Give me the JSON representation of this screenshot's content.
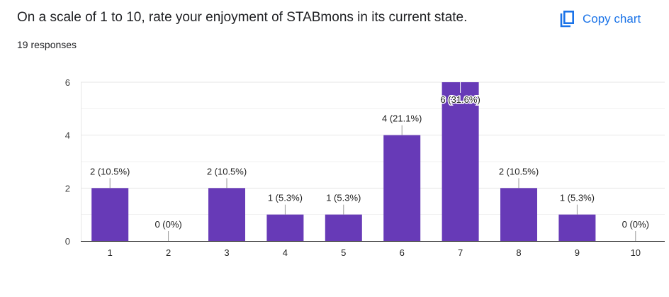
{
  "header": {
    "question": "On a scale of 1 to 10, rate your enjoyment of STABmons in its current state.",
    "responses": "19 responses",
    "copy_label": "Copy chart"
  },
  "colors": {
    "bar": "#673ab7",
    "accent": "#1a73e8"
  },
  "chart_data": {
    "type": "bar",
    "categories": [
      "1",
      "2",
      "3",
      "4",
      "5",
      "6",
      "7",
      "8",
      "9",
      "10"
    ],
    "values": [
      2,
      0,
      2,
      1,
      1,
      4,
      6,
      2,
      1,
      0
    ],
    "data_labels": [
      "2 (10.5%)",
      "0 (0%)",
      "2 (10.5%)",
      "1 (5.3%)",
      "1 (5.3%)",
      "4 (21.1%)",
      "6 (31.6%)",
      "2 (10.5%)",
      "1 (5.3%)",
      "0 (0%)"
    ],
    "yticks": [
      "0",
      "2",
      "4",
      "6"
    ],
    "ylim": [
      0,
      6
    ],
    "grid": true,
    "title": "",
    "xlabel": "",
    "ylabel": ""
  }
}
